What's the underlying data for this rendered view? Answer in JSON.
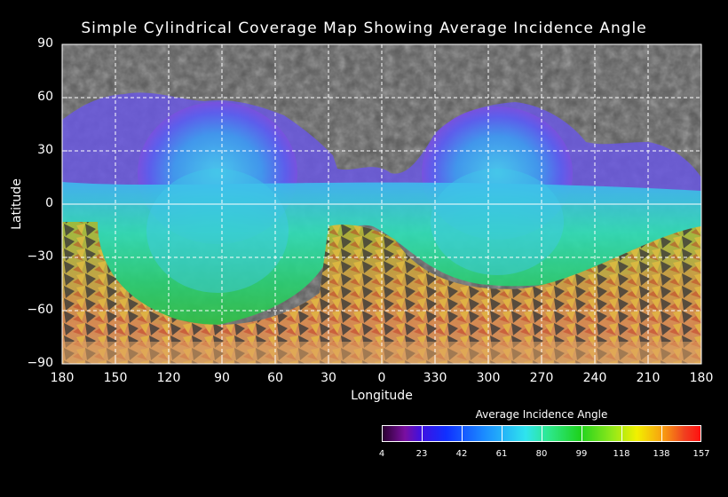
{
  "title": "Simple Cylindrical Coverage Map Showing Average Incidence Angle",
  "axes": {
    "xlabel": "Longitude",
    "ylabel": "Latitude",
    "xticks": [
      "180",
      "150",
      "120",
      "90",
      "60",
      "30",
      "0",
      "330",
      "300",
      "270",
      "240",
      "210",
      "180"
    ],
    "yticks": [
      "90",
      "60",
      "30",
      "0",
      "−30",
      "−60",
      "−90"
    ]
  },
  "colorbar": {
    "title": "Average Incidence Angle",
    "ticks": [
      "4",
      "23",
      "42",
      "61",
      "80",
      "99",
      "118",
      "138",
      "157"
    ]
  },
  "colors": {
    "background": "#000000",
    "grid": "#ffffff",
    "terrain": "#5a5a5a"
  }
}
